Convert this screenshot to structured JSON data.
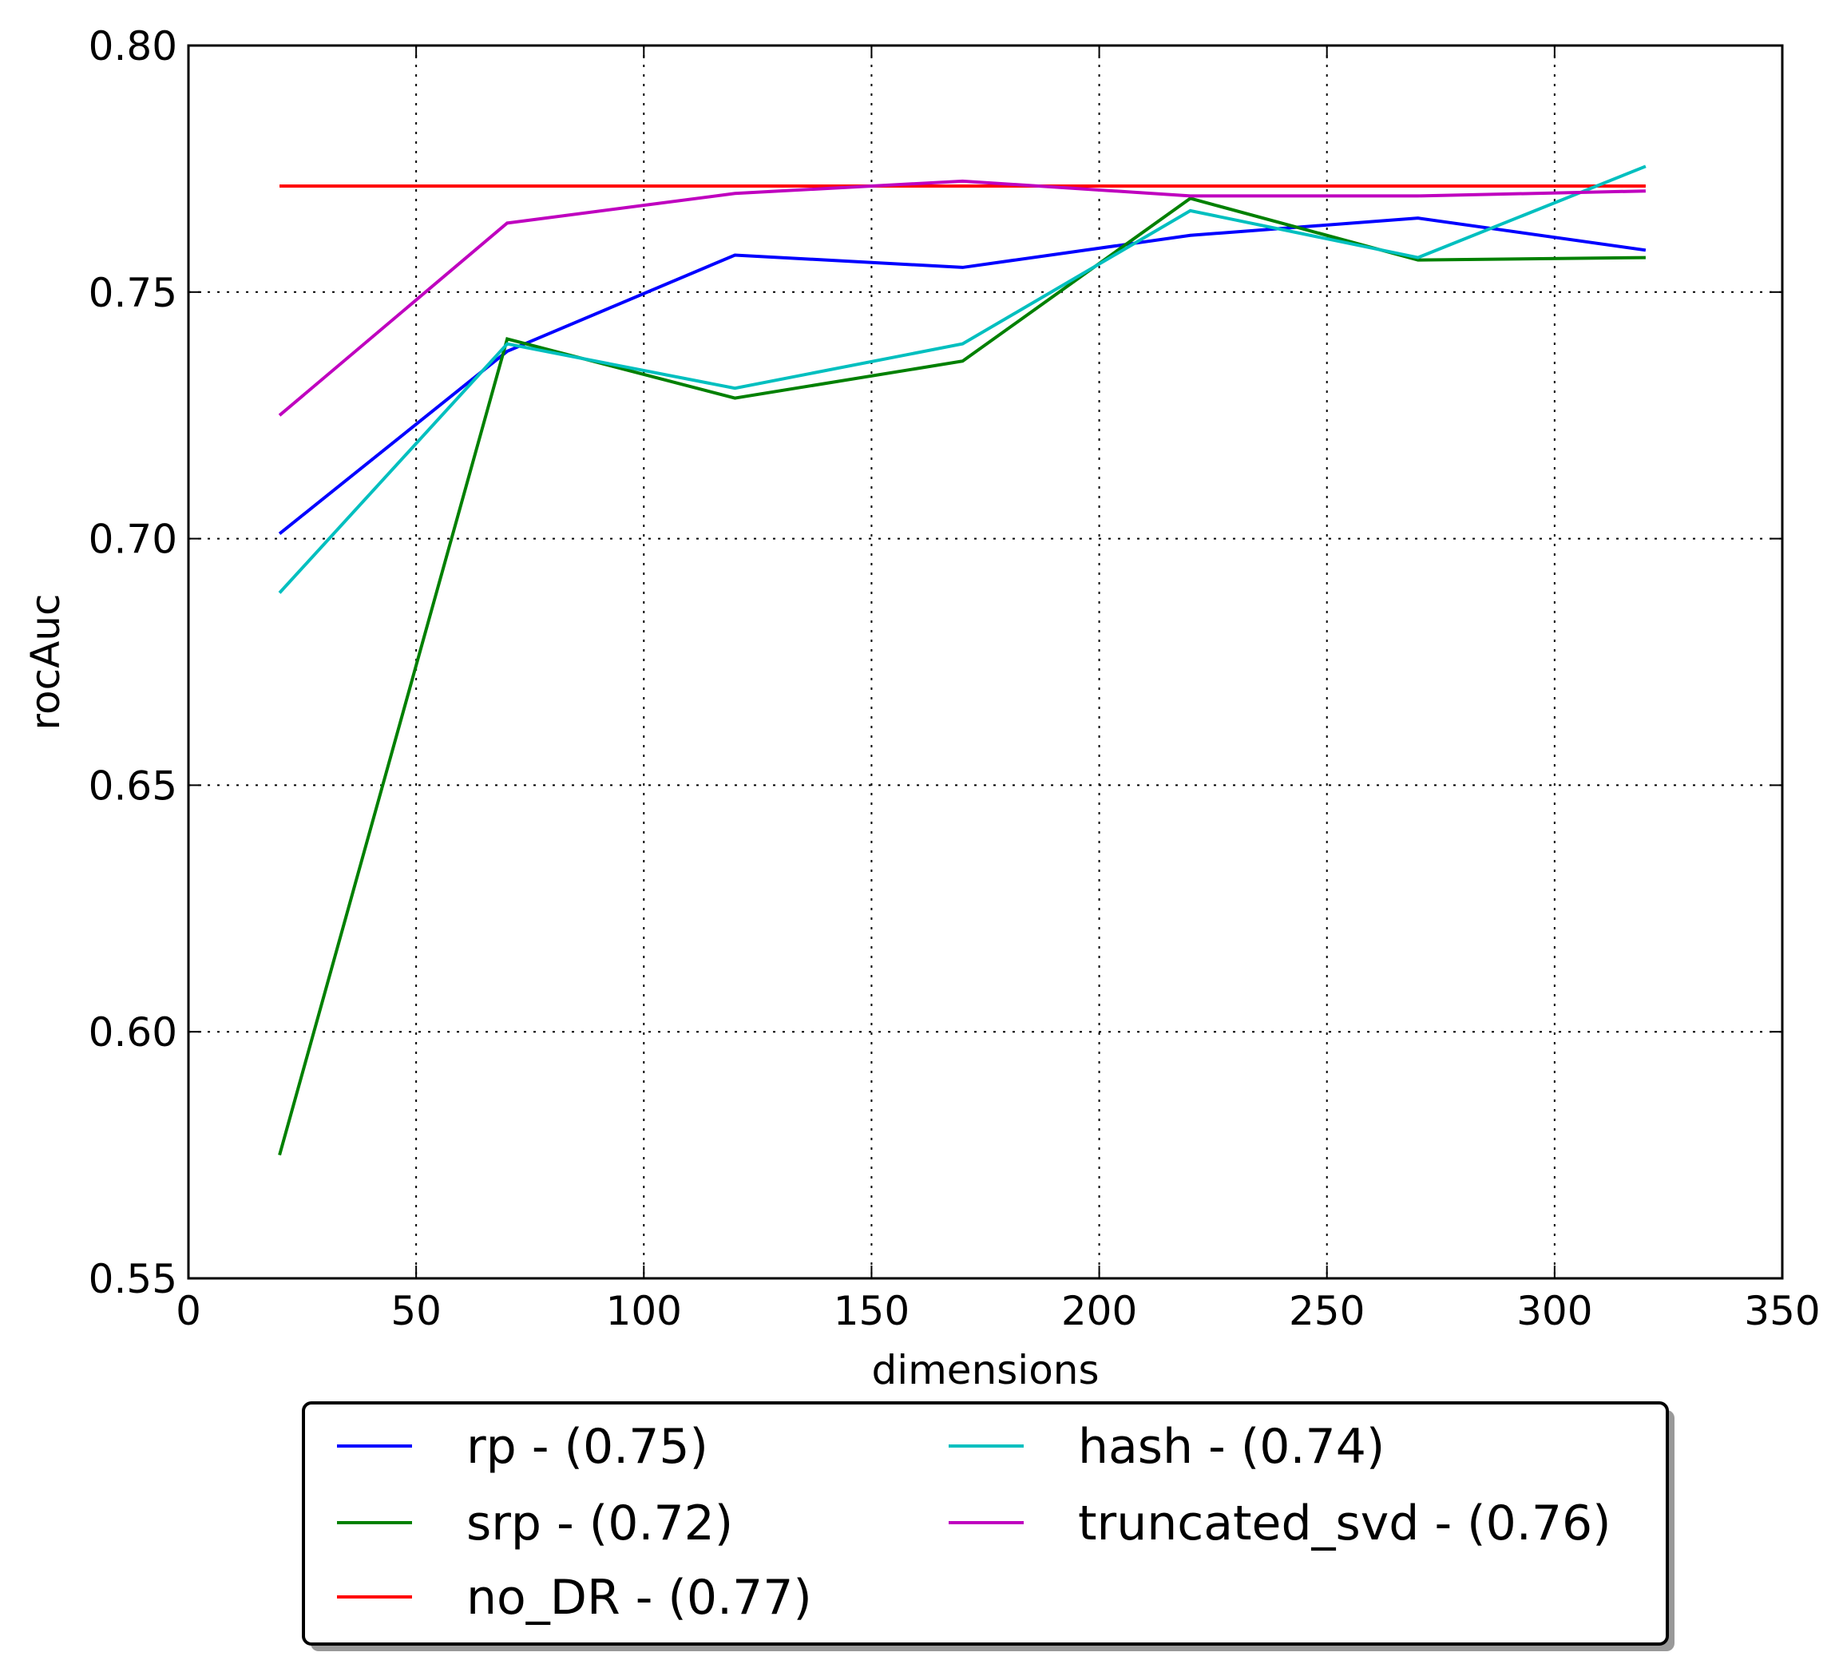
{
  "chart_data": {
    "type": "line",
    "title": "",
    "xlabel": "dimensions",
    "ylabel": "rocAuc",
    "xlim": [
      0,
      350
    ],
    "ylim": [
      0.55,
      0.8
    ],
    "xticks": [
      0,
      50,
      100,
      150,
      200,
      250,
      300,
      350
    ],
    "yticks": [
      0.55,
      0.6,
      0.65,
      0.7,
      0.75,
      0.8
    ],
    "xtick_labels": [
      "0",
      "50",
      "100",
      "150",
      "200",
      "250",
      "300",
      "350"
    ],
    "ytick_labels": [
      "0.55",
      "0.60",
      "0.65",
      "0.70",
      "0.75",
      "0.80"
    ],
    "grid": true,
    "legend_position": "bottom-center, below the axes, two columns",
    "x": [
      20,
      70,
      120,
      170,
      220,
      270,
      320
    ],
    "series": [
      {
        "name": "rp - (0.75)",
        "color": "#0000ff",
        "values": [
          0.701,
          0.738,
          0.7575,
          0.755,
          0.7615,
          0.765,
          0.7585
        ]
      },
      {
        "name": "srp - (0.72)",
        "color": "#008000",
        "values": [
          0.575,
          0.7405,
          0.7285,
          0.736,
          0.769,
          0.7565,
          0.757
        ]
      },
      {
        "name": "no_DR - (0.77)",
        "color": "#ff0000",
        "values": [
          0.7715,
          0.7715,
          0.7715,
          0.7715,
          0.7715,
          0.7715,
          0.7715
        ]
      },
      {
        "name": "hash - (0.74)",
        "color": "#00bfbf",
        "values": [
          0.689,
          0.7395,
          0.7305,
          0.7395,
          0.7665,
          0.757,
          0.7755
        ]
      },
      {
        "name": "truncated_svd - (0.76)",
        "color": "#bf00bf",
        "values": [
          0.725,
          0.764,
          0.77,
          0.7725,
          0.7695,
          0.7695,
          0.7705
        ]
      }
    ]
  }
}
